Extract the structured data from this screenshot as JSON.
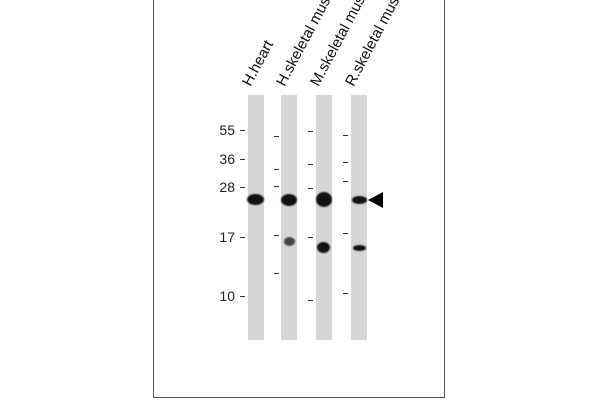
{
  "lanes": [
    {
      "label": "H.heart"
    },
    {
      "label": "H.skeletal muslce"
    },
    {
      "label": "M.skeletal muscle"
    },
    {
      "label": "R.skeletal muscle"
    }
  ],
  "markers": [
    "55",
    "36",
    "28",
    "17",
    "10"
  ],
  "arrow": "arrow-left-icon"
}
